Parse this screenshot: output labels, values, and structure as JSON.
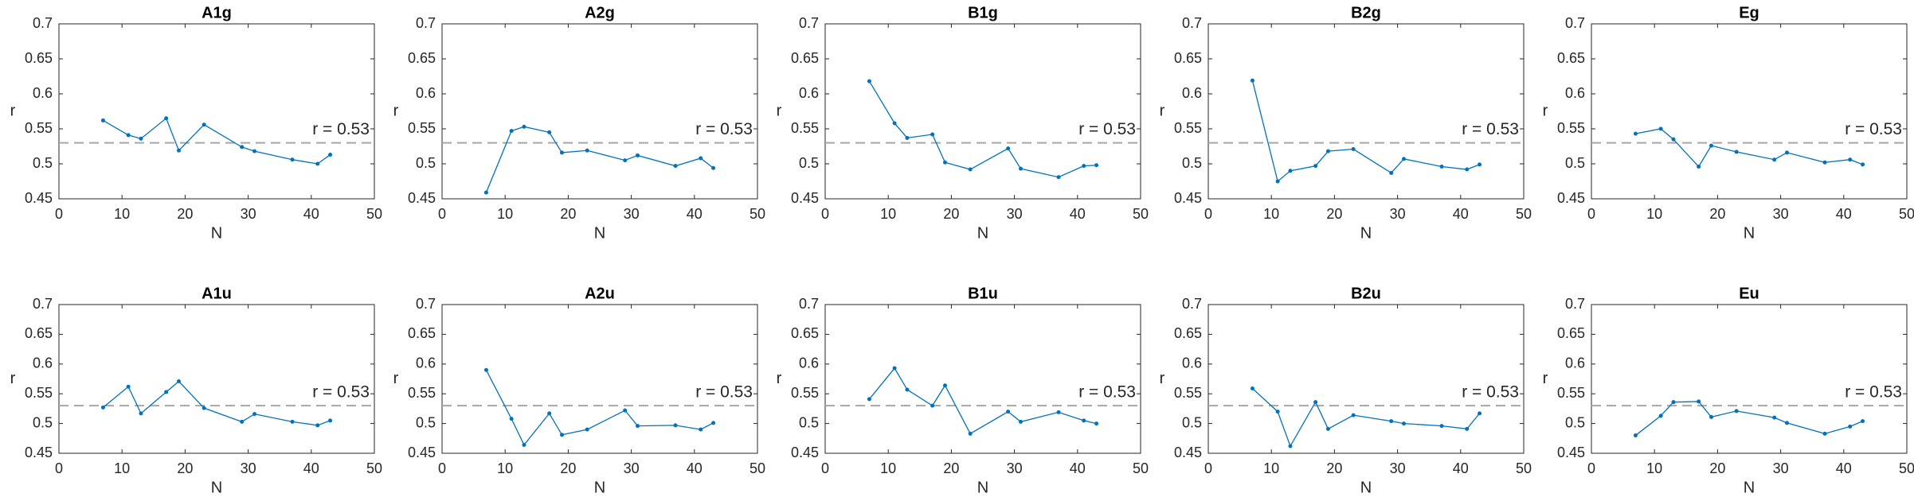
{
  "chart_data": [
    {
      "type": "line",
      "title": "A1g",
      "xlabel": "N",
      "ylabel": "r",
      "xlim": [
        0,
        50
      ],
      "ylim": [
        0.45,
        0.7
      ],
      "xticks": [
        0,
        10,
        20,
        30,
        40,
        50
      ],
      "yticks": [
        0.45,
        0.5,
        0.55,
        0.6,
        0.65,
        0.7
      ],
      "hline": 0.53,
      "hline_color": "#a6a6a6",
      "annotation": "r = 0.53",
      "x": [
        7,
        11,
        13,
        17,
        19,
        23,
        29,
        31,
        37,
        41,
        43
      ],
      "series": [
        {
          "color": "#0072bd",
          "values": [
            0.562,
            0.541,
            0.536,
            0.565,
            0.519,
            0.556,
            0.524,
            0.518,
            0.506,
            0.5,
            0.513
          ]
        }
      ]
    },
    {
      "type": "line",
      "title": "A2g",
      "xlabel": "N",
      "ylabel": "r",
      "xlim": [
        0,
        50
      ],
      "ylim": [
        0.45,
        0.7
      ],
      "xticks": [
        0,
        10,
        20,
        30,
        40,
        50
      ],
      "yticks": [
        0.45,
        0.5,
        0.55,
        0.6,
        0.65,
        0.7
      ],
      "hline": 0.53,
      "hline_color": "#a6a6a6",
      "annotation": "r = 0.53",
      "x": [
        7,
        11,
        13,
        17,
        19,
        23,
        29,
        31,
        37,
        41,
        43
      ],
      "series": [
        {
          "color": "#0072bd",
          "values": [
            0.459,
            0.547,
            0.553,
            0.545,
            0.516,
            0.519,
            0.505,
            0.512,
            0.497,
            0.508,
            0.494
          ]
        }
      ]
    },
    {
      "type": "line",
      "title": "B1g",
      "xlabel": "N",
      "ylabel": "r",
      "xlim": [
        0,
        50
      ],
      "ylim": [
        0.45,
        0.7
      ],
      "xticks": [
        0,
        10,
        20,
        30,
        40,
        50
      ],
      "yticks": [
        0.45,
        0.5,
        0.55,
        0.6,
        0.65,
        0.7
      ],
      "hline": 0.53,
      "hline_color": "#a6a6a6",
      "annotation": "r = 0.53",
      "x": [
        7,
        11,
        13,
        17,
        19,
        23,
        29,
        31,
        37,
        41,
        43
      ],
      "series": [
        {
          "color": "#0072bd",
          "values": [
            0.618,
            0.558,
            0.537,
            0.542,
            0.502,
            0.492,
            0.522,
            0.493,
            0.481,
            0.497,
            0.498
          ]
        }
      ]
    },
    {
      "type": "line",
      "title": "B2g",
      "xlabel": "N",
      "ylabel": "r",
      "xlim": [
        0,
        50
      ],
      "ylim": [
        0.45,
        0.7
      ],
      "xticks": [
        0,
        10,
        20,
        30,
        40,
        50
      ],
      "yticks": [
        0.45,
        0.5,
        0.55,
        0.6,
        0.65,
        0.7
      ],
      "hline": 0.53,
      "hline_color": "#a6a6a6",
      "annotation": "r = 0.53",
      "x": [
        7,
        11,
        13,
        17,
        19,
        23,
        29,
        31,
        37,
        41,
        43
      ],
      "series": [
        {
          "color": "#0072bd",
          "values": [
            0.619,
            0.475,
            0.49,
            0.497,
            0.518,
            0.521,
            0.487,
            0.507,
            0.496,
            0.492,
            0.499
          ]
        }
      ]
    },
    {
      "type": "line",
      "title": "Eg",
      "xlabel": "N",
      "ylabel": "r",
      "xlim": [
        0,
        50
      ],
      "ylim": [
        0.45,
        0.7
      ],
      "xticks": [
        0,
        10,
        20,
        30,
        40,
        50
      ],
      "yticks": [
        0.45,
        0.5,
        0.55,
        0.6,
        0.65,
        0.7
      ],
      "hline": 0.53,
      "hline_color": "#a6a6a6",
      "annotation": "r = 0.53",
      "x": [
        7,
        11,
        13,
        17,
        19,
        23,
        29,
        31,
        37,
        41,
        43
      ],
      "series": [
        {
          "color": "#0072bd",
          "values": [
            0.543,
            0.55,
            0.535,
            0.496,
            0.526,
            0.517,
            0.506,
            0.516,
            0.502,
            0.506,
            0.499
          ]
        }
      ]
    },
    {
      "type": "line",
      "title": "A1u",
      "xlabel": "N",
      "ylabel": "r",
      "xlim": [
        0,
        50
      ],
      "ylim": [
        0.45,
        0.7
      ],
      "xticks": [
        0,
        10,
        20,
        30,
        40,
        50
      ],
      "yticks": [
        0.45,
        0.5,
        0.55,
        0.6,
        0.65,
        0.7
      ],
      "hline": 0.53,
      "hline_color": "#a6a6a6",
      "annotation": "r = 0.53",
      "x": [
        7,
        11,
        13,
        17,
        19,
        23,
        29,
        31,
        37,
        41,
        43
      ],
      "series": [
        {
          "color": "#0072bd",
          "values": [
            0.527,
            0.562,
            0.517,
            0.553,
            0.571,
            0.526,
            0.503,
            0.516,
            0.503,
            0.497,
            0.505
          ]
        }
      ]
    },
    {
      "type": "line",
      "title": "A2u",
      "xlabel": "N",
      "ylabel": "r",
      "xlim": [
        0,
        50
      ],
      "ylim": [
        0.45,
        0.7
      ],
      "xticks": [
        0,
        10,
        20,
        30,
        40,
        50
      ],
      "yticks": [
        0.45,
        0.5,
        0.55,
        0.6,
        0.65,
        0.7
      ],
      "hline": 0.53,
      "hline_color": "#a6a6a6",
      "annotation": "r = 0.53",
      "x": [
        7,
        11,
        13,
        17,
        19,
        23,
        29,
        31,
        37,
        41,
        43
      ],
      "series": [
        {
          "color": "#0072bd",
          "values": [
            0.59,
            0.508,
            0.464,
            0.517,
            0.481,
            0.49,
            0.522,
            0.496,
            0.497,
            0.49,
            0.501
          ]
        }
      ]
    },
    {
      "type": "line",
      "title": "B1u",
      "xlabel": "N",
      "ylabel": "r",
      "xlim": [
        0,
        50
      ],
      "ylim": [
        0.45,
        0.7
      ],
      "xticks": [
        0,
        10,
        20,
        30,
        40,
        50
      ],
      "yticks": [
        0.45,
        0.5,
        0.55,
        0.6,
        0.65,
        0.7
      ],
      "hline": 0.53,
      "hline_color": "#a6a6a6",
      "annotation": "r = 0.53",
      "x": [
        7,
        11,
        13,
        17,
        19,
        23,
        29,
        31,
        37,
        41,
        43
      ],
      "series": [
        {
          "color": "#0072bd",
          "values": [
            0.541,
            0.593,
            0.557,
            0.53,
            0.564,
            0.483,
            0.52,
            0.503,
            0.519,
            0.505,
            0.5
          ]
        }
      ]
    },
    {
      "type": "line",
      "title": "B2u",
      "xlabel": "N",
      "ylabel": "r",
      "xlim": [
        0,
        50
      ],
      "ylim": [
        0.45,
        0.7
      ],
      "xticks": [
        0,
        10,
        20,
        30,
        40,
        50
      ],
      "yticks": [
        0.45,
        0.5,
        0.55,
        0.6,
        0.65,
        0.7
      ],
      "hline": 0.53,
      "hline_color": "#a6a6a6",
      "annotation": "r = 0.53",
      "x": [
        7,
        11,
        13,
        17,
        19,
        23,
        29,
        31,
        37,
        41,
        43
      ],
      "series": [
        {
          "color": "#0072bd",
          "values": [
            0.559,
            0.52,
            0.462,
            0.536,
            0.491,
            0.514,
            0.504,
            0.5,
            0.496,
            0.491,
            0.517
          ]
        }
      ]
    },
    {
      "type": "line",
      "title": "Eu",
      "xlabel": "N",
      "ylabel": "r",
      "xlim": [
        0,
        50
      ],
      "ylim": [
        0.45,
        0.7
      ],
      "xticks": [
        0,
        10,
        20,
        30,
        40,
        50
      ],
      "yticks": [
        0.45,
        0.5,
        0.55,
        0.6,
        0.65,
        0.7
      ],
      "hline": 0.53,
      "hline_color": "#a6a6a6",
      "annotation": "r = 0.53",
      "x": [
        7,
        11,
        13,
        17,
        19,
        23,
        29,
        31,
        37,
        41,
        43
      ],
      "series": [
        {
          "color": "#0072bd",
          "values": [
            0.48,
            0.513,
            0.536,
            0.537,
            0.511,
            0.521,
            0.51,
            0.501,
            0.483,
            0.495,
            0.504
          ]
        }
      ]
    }
  ]
}
